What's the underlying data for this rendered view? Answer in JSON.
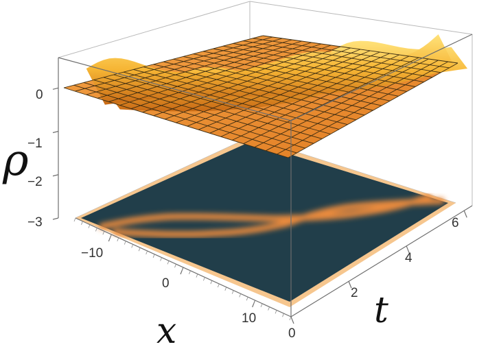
{
  "chart_data": {
    "type": "surface3d",
    "title": "",
    "axes": {
      "x": {
        "label": "x",
        "range": [
          -15,
          15
        ],
        "ticks": [
          -10,
          0,
          10
        ]
      },
      "t": {
        "label": "t",
        "range": [
          0,
          6.28
        ],
        "ticks": [
          0,
          2,
          4,
          6
        ]
      },
      "rho": {
        "label": "ρ",
        "range": [
          -3,
          0.7
        ],
        "ticks": [
          -3,
          -2,
          -1,
          0
        ]
      }
    },
    "tick_labels": {
      "x": [
        "−10",
        "0",
        "10"
      ],
      "t": [
        "0",
        "2",
        "4",
        "6"
      ],
      "rho": [
        "−3",
        "−2",
        "−1",
        "0"
      ]
    },
    "surface": {
      "baseline": 0,
      "description_values": "two breather-like solitons whose paths oscillate in x with t",
      "soliton_paths": [
        {
          "x_at_t": [
            [
              0,
              -10
            ],
            [
              1.57,
              -4
            ],
            [
              3.14,
              3
            ],
            [
              4.71,
              8
            ],
            [
              6.28,
              14
            ]
          ]
        },
        {
          "x_at_t": [
            [
              0,
              -12
            ],
            [
              1.57,
              -6
            ],
            [
              3.14,
              1
            ],
            [
              4.71,
              6
            ],
            [
              6.28,
              12
            ]
          ]
        }
      ],
      "peak_amplitude": 0.7,
      "trough_depth": -0.4
    },
    "density_projection": {
      "z": -3,
      "background": "#213e4a",
      "trace_color": "#e98a3c",
      "border_color": "#f6c68e"
    },
    "colors": {
      "surface_top": "#f7b93c",
      "surface_side": "#e28922",
      "surface_dark": "#c4631a"
    }
  }
}
